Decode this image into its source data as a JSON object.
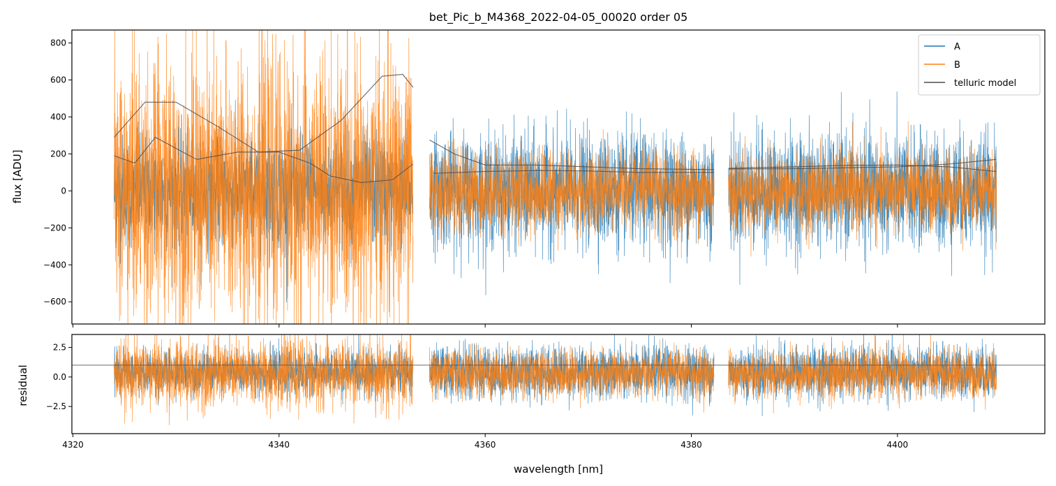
{
  "chart_data": [
    {
      "type": "line",
      "title": "bet_Pic_b_M4368_2022-04-05_00020  order 05",
      "xlabel": "",
      "ylabel": "flux [ADU]",
      "xlim": [
        4319.9,
        4414.3
      ],
      "ylim": [
        -720,
        870
      ],
      "yticks": [
        800,
        600,
        400,
        200,
        0,
        -200,
        -400,
        -600
      ],
      "ytick_labels": [
        "800",
        "600",
        "400",
        "200",
        "0",
        "−200",
        "−400",
        "−600"
      ],
      "xticks": [
        4320,
        4340,
        4360,
        4380,
        4400
      ],
      "legend": {
        "location": "top-right"
      },
      "segments": [
        [
          4324.0,
          4353.0
        ],
        [
          4354.6,
          4382.2
        ],
        [
          4383.6,
          4409.6
        ]
      ],
      "series": [
        {
          "name": "A",
          "color": "#1f77b4",
          "noise_sigma": [
            150,
            150,
            150
          ],
          "baseline": 0
        },
        {
          "name": "B",
          "color": "#ff7f0e",
          "noise_sigma": [
            360,
            110,
            105
          ],
          "baseline": 0
        },
        {
          "name": "telluric model",
          "color": "#4d4d4d",
          "curves": [
            {
              "x": [
                4324.0,
                4327.0,
                4330.0,
                4334.0,
                4338.0,
                4342.0,
                4346.0,
                4350.0,
                4352.0,
                4353.0
              ],
              "y": [
                290,
                480,
                480,
                350,
                210,
                220,
                380,
                620,
                630,
                560
              ]
            },
            {
              "x": [
                4324.0,
                4326.0,
                4328.0,
                4332.0,
                4336.0,
                4340.0,
                4343.0,
                4345.0,
                4348.0,
                4351.0,
                4353.0
              ],
              "y": [
                190,
                150,
                290,
                170,
                210,
                210,
                150,
                80,
                45,
                60,
                145
              ]
            },
            {
              "x": [
                4354.6,
                4357.0,
                4360.0,
                4365.0,
                4370.0,
                4375.0,
                4382.2
              ],
              "y": [
                275,
                200,
                140,
                140,
                130,
                120,
                115
              ]
            },
            {
              "x": [
                4355.0,
                4360.0,
                4365.0,
                4370.0,
                4375.0,
                4382.2
              ],
              "y": [
                95,
                105,
                110,
                108,
                100,
                100
              ]
            },
            {
              "x": [
                4383.6,
                4390.0,
                4395.0,
                4400.0,
                4405.0,
                4409.6
              ],
              "y": [
                122,
                130,
                138,
                140,
                130,
                105
              ]
            },
            {
              "x": [
                4383.6,
                4390.0,
                4395.0,
                4400.0,
                4405.0,
                4409.6
              ],
              "y": [
                118,
                120,
                125,
                130,
                145,
                170
              ]
            }
          ]
        }
      ]
    },
    {
      "type": "line",
      "title": "",
      "xlabel": "wavelength [nm]",
      "ylabel": "residual",
      "xlim": [
        4319.9,
        4414.3
      ],
      "ylim": [
        -4.8,
        3.6
      ],
      "yticks": [
        2.5,
        0.0,
        -2.5
      ],
      "ytick_labels": [
        "2.5",
        "0.0",
        "−2.5"
      ],
      "xticks": [
        4320,
        4340,
        4360,
        4380,
        4400
      ],
      "xtick_labels": [
        "4320",
        "4340",
        "4360",
        "4380",
        "4400"
      ],
      "reference_line": 1.0,
      "segments": [
        [
          4324.0,
          4353.0
        ],
        [
          4354.6,
          4382.2
        ],
        [
          4383.6,
          4409.6
        ]
      ],
      "series": [
        {
          "name": "A",
          "color": "#1f77b4",
          "noise_sigma": [
            0.9,
            1.1,
            1.1
          ],
          "baseline": 0.4
        },
        {
          "name": "B",
          "color": "#ff7f0e",
          "noise_sigma": [
            1.4,
            1.0,
            1.0
          ],
          "baseline": 0.3
        }
      ]
    }
  ]
}
